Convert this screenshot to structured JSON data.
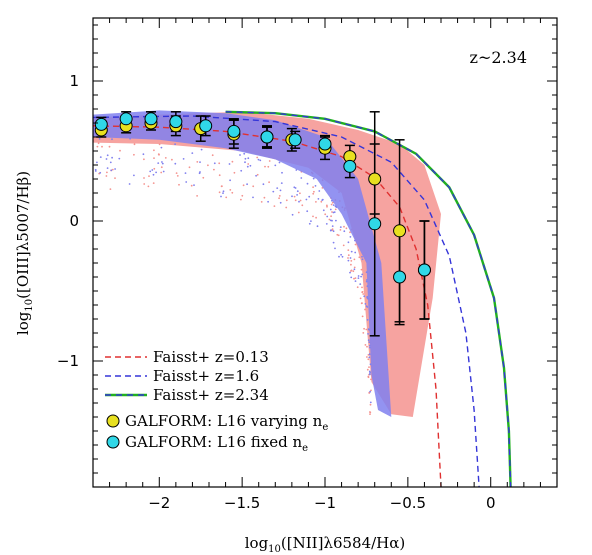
{
  "chart_data": {
    "type": "scatter",
    "xlabel_parts": {
      "pre": "log",
      "sub": "10",
      "main": "([NII]λ6584/Hα)"
    },
    "ylabel_parts": {
      "pre": "log",
      "sub": "10",
      "main": "([OIII]λ5007/Hβ)"
    },
    "xlim": [
      -2.4,
      0.4
    ],
    "ylim": [
      -1.9,
      1.45
    ],
    "x_ticks": [
      -2,
      -1.5,
      -1,
      -0.5,
      0
    ],
    "x_tick_labels": [
      "−2",
      "−1.5",
      "−1",
      "−0.5",
      "0"
    ],
    "y_ticks": [
      -1,
      0,
      1
    ],
    "y_tick_labels": [
      "−1",
      "0",
      "1"
    ],
    "annotation": "z~2.34",
    "clouds": [
      {
        "color": "#f4938f",
        "upper": [
          [
            -2.4,
            0.74
          ],
          [
            -2.0,
            0.76
          ],
          [
            -1.5,
            0.78
          ],
          [
            -1.1,
            0.73
          ],
          [
            -0.8,
            0.65
          ],
          [
            -0.55,
            0.55
          ],
          [
            -0.4,
            0.4
          ],
          [
            -0.3,
            0.05
          ],
          [
            -0.35,
            -0.55
          ],
          [
            -0.47,
            -1.4
          ],
          [
            -0.6,
            -1.38
          ]
        ],
        "lower": [
          [
            -2.4,
            0.56
          ],
          [
            -2.0,
            0.55
          ],
          [
            -1.5,
            0.5
          ],
          [
            -1.1,
            0.38
          ],
          [
            -0.9,
            0.2
          ],
          [
            -0.78,
            -0.3
          ],
          [
            -0.72,
            -1.15
          ]
        ]
      },
      {
        "color": "#8080ee",
        "upper": [
          [
            -2.4,
            0.76
          ],
          [
            -2.0,
            0.79
          ],
          [
            -1.6,
            0.77
          ],
          [
            -1.3,
            0.72
          ],
          [
            -1.0,
            0.6
          ],
          [
            -0.8,
            0.3
          ],
          [
            -0.66,
            -0.3
          ],
          [
            -0.6,
            -1.4
          ],
          [
            -0.68,
            -1.35
          ]
        ],
        "lower": [
          [
            -2.4,
            0.6
          ],
          [
            -2.0,
            0.58
          ],
          [
            -1.6,
            0.52
          ],
          [
            -1.3,
            0.44
          ],
          [
            -1.05,
            0.3
          ],
          [
            -0.9,
            0.05
          ],
          [
            -0.75,
            -0.3
          ],
          [
            -0.72,
            -1.1
          ]
        ]
      }
    ],
    "lines": [
      {
        "name": "Faisst+  z=0.13",
        "color": "#e03030",
        "style": "dashed",
        "x": [
          -2.4,
          -2.0,
          -1.6,
          -1.2,
          -0.9,
          -0.7,
          -0.55,
          -0.45,
          -0.38,
          -0.33,
          -0.3
        ],
        "y": [
          0.68,
          0.67,
          0.64,
          0.57,
          0.46,
          0.31,
          0.1,
          -0.2,
          -0.6,
          -1.2,
          -1.9
        ]
      },
      {
        "name": "Faisst+  z=1.6",
        "color": "#3535d8",
        "style": "dashed",
        "x": [
          -2.4,
          -1.8,
          -1.3,
          -0.9,
          -0.6,
          -0.4,
          -0.25,
          -0.15,
          -0.1,
          -0.07
        ],
        "y": [
          0.74,
          0.75,
          0.71,
          0.6,
          0.42,
          0.15,
          -0.25,
          -0.8,
          -1.35,
          -1.9
        ]
      },
      {
        "name": "Faisst+  z=2.34",
        "color": "#20b020",
        "style": "dashdot",
        "x": [
          -1.6,
          -1.3,
          -1.0,
          -0.7,
          -0.45,
          -0.25,
          -0.1,
          0.02,
          0.08,
          0.11,
          0.12
        ],
        "y": [
          0.78,
          0.77,
          0.73,
          0.64,
          0.48,
          0.24,
          -0.1,
          -0.55,
          -1.05,
          -1.5,
          -1.9
        ]
      }
    ],
    "series": [
      {
        "name": "GALFORM: L16 varying n",
        "name_sub": "e",
        "color": "#e8e020",
        "points": [
          {
            "x": -2.35,
            "y": 0.65,
            "err": 0.05
          },
          {
            "x": -2.2,
            "y": 0.68,
            "err": 0.05
          },
          {
            "x": -2.05,
            "y": 0.7,
            "err": 0.05
          },
          {
            "x": -1.9,
            "y": 0.68,
            "err": 0.07
          },
          {
            "x": -1.75,
            "y": 0.66,
            "err": 0.09
          },
          {
            "x": -1.55,
            "y": 0.62,
            "err": 0.1
          },
          {
            "x": -1.35,
            "y": 0.6,
            "err": 0.08
          },
          {
            "x": -1.2,
            "y": 0.58,
            "err": 0.08
          },
          {
            "x": -1.0,
            "y": 0.52,
            "err": 0.08
          },
          {
            "x": -0.85,
            "y": 0.46,
            "err": 0.08
          },
          {
            "x": -0.7,
            "y": 0.3,
            "err": 0.25
          },
          {
            "x": -0.55,
            "y": -0.07,
            "err": 0.65
          },
          {
            "x": -0.4,
            "y": -0.35,
            "err": 0.35
          }
        ]
      },
      {
        "name": "GALFORM: L16 fixed n",
        "name_sub": "e",
        "color": "#30d8e8",
        "points": [
          {
            "x": -2.35,
            "y": 0.69,
            "err": 0.05
          },
          {
            "x": -2.2,
            "y": 0.73,
            "err": 0.05
          },
          {
            "x": -2.05,
            "y": 0.73,
            "err": 0.05
          },
          {
            "x": -1.9,
            "y": 0.71,
            "err": 0.07
          },
          {
            "x": -1.72,
            "y": 0.68,
            "err": 0.07
          },
          {
            "x": -1.55,
            "y": 0.64,
            "err": 0.09
          },
          {
            "x": -1.35,
            "y": 0.6,
            "err": 0.07
          },
          {
            "x": -1.18,
            "y": 0.58,
            "err": 0.06
          },
          {
            "x": -1.0,
            "y": 0.55,
            "err": 0.06
          },
          {
            "x": -0.85,
            "y": 0.39,
            "err": 0.08
          },
          {
            "x": -0.7,
            "y": -0.02,
            "err": 0.8
          },
          {
            "x": -0.55,
            "y": -0.4,
            "err": 0.34
          },
          {
            "x": -0.4,
            "y": -0.35,
            "err": 0.35
          }
        ]
      }
    ]
  }
}
